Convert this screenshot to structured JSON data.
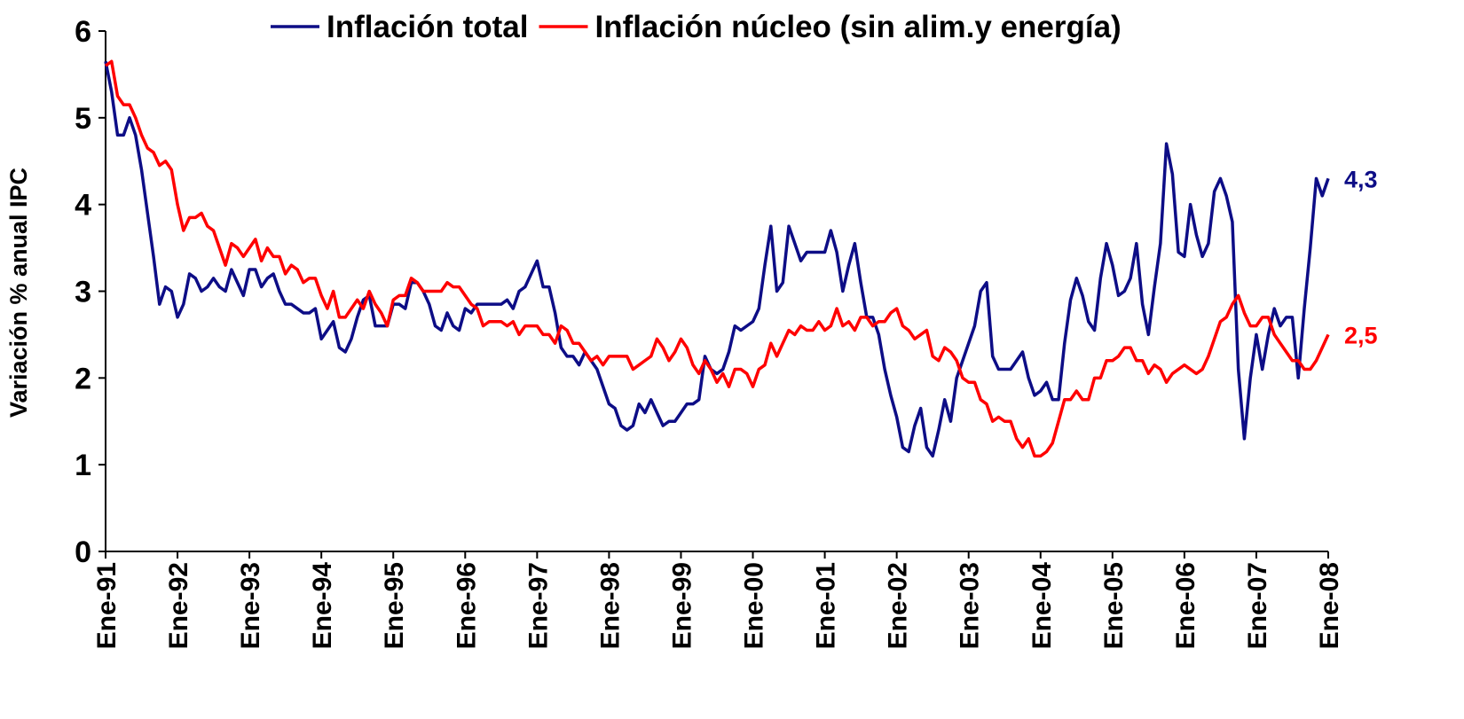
{
  "chart_data": {
    "type": "line",
    "y_label": "Variación % anual IPC",
    "categories": [
      "Ene-91",
      null,
      null,
      null,
      null,
      null,
      null,
      null,
      null,
      null,
      null,
      null,
      "Ene-92",
      null,
      null,
      null,
      null,
      null,
      null,
      null,
      null,
      null,
      null,
      null,
      "Ene-93",
      null,
      null,
      null,
      null,
      null,
      null,
      null,
      null,
      null,
      null,
      null,
      "Ene-94",
      null,
      null,
      null,
      null,
      null,
      null,
      null,
      null,
      null,
      null,
      null,
      "Ene-95",
      null,
      null,
      null,
      null,
      null,
      null,
      null,
      null,
      null,
      null,
      null,
      "Ene-96",
      null,
      null,
      null,
      null,
      null,
      null,
      null,
      null,
      null,
      null,
      null,
      "Ene-97",
      null,
      null,
      null,
      null,
      null,
      null,
      null,
      null,
      null,
      null,
      null,
      "Ene-98",
      null,
      null,
      null,
      null,
      null,
      null,
      null,
      null,
      null,
      null,
      null,
      "Ene-99",
      null,
      null,
      null,
      null,
      null,
      null,
      null,
      null,
      null,
      null,
      null,
      "Ene-00",
      null,
      null,
      null,
      null,
      null,
      null,
      null,
      null,
      null,
      null,
      null,
      "Ene-01",
      null,
      null,
      null,
      null,
      null,
      null,
      null,
      null,
      null,
      null,
      null,
      "Ene-02",
      null,
      null,
      null,
      null,
      null,
      null,
      null,
      null,
      null,
      null,
      null,
      "Ene-03",
      null,
      null,
      null,
      null,
      null,
      null,
      null,
      null,
      null,
      null,
      null,
      "Ene-04",
      null,
      null,
      null,
      null,
      null,
      null,
      null,
      null,
      null,
      null,
      null,
      "Ene-05",
      null,
      null,
      null,
      null,
      null,
      null,
      null,
      null,
      null,
      null,
      null,
      "Ene-06",
      null,
      null,
      null,
      null,
      null,
      null,
      null,
      null,
      null,
      null,
      null,
      "Ene-07",
      null,
      null,
      null,
      null,
      null,
      null,
      null,
      null,
      null,
      null,
      null,
      "Ene-08"
    ],
    "series": [
      {
        "name": "Inflación total",
        "color": "#0d0d86",
        "values": [
          5.65,
          5.3,
          4.8,
          4.8,
          5.0,
          4.8,
          4.4,
          3.9,
          3.4,
          2.85,
          3.05,
          3.0,
          2.7,
          2.85,
          3.2,
          3.15,
          3.0,
          3.05,
          3.15,
          3.05,
          3.0,
          3.25,
          3.1,
          2.95,
          3.25,
          3.25,
          3.05,
          3.15,
          3.2,
          3.0,
          2.85,
          2.85,
          2.8,
          2.75,
          2.75,
          2.8,
          2.45,
          2.55,
          2.65,
          2.35,
          2.3,
          2.45,
          2.7,
          2.9,
          2.95,
          2.6,
          2.6,
          2.6,
          2.85,
          2.85,
          2.8,
          3.1,
          3.1,
          3.0,
          2.85,
          2.6,
          2.55,
          2.75,
          2.6,
          2.55,
          2.8,
          2.75,
          2.85,
          2.85,
          2.85,
          2.85,
          2.85,
          2.9,
          2.8,
          3.0,
          3.05,
          3.2,
          3.35,
          3.05,
          3.05,
          2.75,
          2.35,
          2.25,
          2.25,
          2.15,
          2.3,
          2.2,
          2.1,
          1.9,
          1.7,
          1.65,
          1.45,
          1.4,
          1.45,
          1.7,
          1.6,
          1.75,
          1.6,
          1.45,
          1.5,
          1.5,
          1.6,
          1.7,
          1.7,
          1.75,
          2.25,
          2.1,
          2.05,
          2.1,
          2.3,
          2.6,
          2.55,
          2.6,
          2.65,
          2.8,
          3.3,
          3.75,
          3.0,
          3.1,
          3.75,
          3.55,
          3.35,
          3.45,
          3.45,
          3.45,
          3.45,
          3.7,
          3.45,
          3.0,
          3.3,
          3.55,
          3.1,
          2.7,
          2.7,
          2.5,
          2.1,
          1.8,
          1.55,
          1.2,
          1.15,
          1.45,
          1.65,
          1.2,
          1.1,
          1.4,
          1.75,
          1.5,
          2.0,
          2.2,
          2.4,
          2.6,
          3.0,
          3.1,
          2.25,
          2.1,
          2.1,
          2.1,
          2.2,
          2.3,
          2.0,
          1.8,
          1.85,
          1.95,
          1.75,
          1.75,
          2.4,
          2.9,
          3.15,
          2.95,
          2.65,
          2.55,
          3.15,
          3.55,
          3.3,
          2.95,
          3.0,
          3.15,
          3.55,
          2.85,
          2.5,
          3.05,
          3.55,
          4.7,
          4.35,
          3.45,
          3.4,
          4.0,
          3.65,
          3.4,
          3.55,
          4.15,
          4.3,
          4.1,
          3.8,
          2.1,
          1.3,
          2.0,
          2.5,
          2.1,
          2.5,
          2.8,
          2.6,
          2.7,
          2.7,
          2.0,
          2.8,
          3.5,
          4.3,
          4.1,
          4.3
        ]
      },
      {
        "name": "Inflación núcleo (sin alim.y energía)",
        "color": "#ff0000",
        "values": [
          5.6,
          5.65,
          5.25,
          5.15,
          5.15,
          5.0,
          4.8,
          4.65,
          4.6,
          4.45,
          4.5,
          4.4,
          4.0,
          3.7,
          3.85,
          3.85,
          3.9,
          3.75,
          3.7,
          3.5,
          3.3,
          3.55,
          3.5,
          3.4,
          3.5,
          3.6,
          3.35,
          3.5,
          3.4,
          3.4,
          3.2,
          3.3,
          3.25,
          3.1,
          3.15,
          3.15,
          2.95,
          2.8,
          3.0,
          2.7,
          2.7,
          2.8,
          2.9,
          2.8,
          3.0,
          2.85,
          2.75,
          2.6,
          2.9,
          2.95,
          2.95,
          3.15,
          3.1,
          3.0,
          3.0,
          3.0,
          3.0,
          3.1,
          3.05,
          3.05,
          2.95,
          2.85,
          2.8,
          2.6,
          2.65,
          2.65,
          2.65,
          2.6,
          2.65,
          2.5,
          2.6,
          2.6,
          2.6,
          2.5,
          2.5,
          2.4,
          2.6,
          2.55,
          2.4,
          2.4,
          2.3,
          2.2,
          2.25,
          2.15,
          2.25,
          2.25,
          2.25,
          2.25,
          2.1,
          2.15,
          2.2,
          2.25,
          2.45,
          2.35,
          2.2,
          2.3,
          2.45,
          2.35,
          2.15,
          2.05,
          2.2,
          2.1,
          1.95,
          2.05,
          1.9,
          2.1,
          2.1,
          2.05,
          1.9,
          2.1,
          2.15,
          2.4,
          2.25,
          2.4,
          2.55,
          2.5,
          2.6,
          2.55,
          2.55,
          2.65,
          2.55,
          2.6,
          2.8,
          2.6,
          2.65,
          2.55,
          2.7,
          2.7,
          2.6,
          2.65,
          2.65,
          2.75,
          2.8,
          2.6,
          2.55,
          2.45,
          2.5,
          2.55,
          2.25,
          2.2,
          2.35,
          2.3,
          2.2,
          2.0,
          1.95,
          1.95,
          1.75,
          1.7,
          1.5,
          1.55,
          1.5,
          1.5,
          1.3,
          1.2,
          1.3,
          1.1,
          1.1,
          1.15,
          1.25,
          1.5,
          1.75,
          1.75,
          1.85,
          1.75,
          1.75,
          2.0,
          2.0,
          2.2,
          2.2,
          2.25,
          2.35,
          2.35,
          2.2,
          2.2,
          2.05,
          2.15,
          2.1,
          1.95,
          2.05,
          2.1,
          2.15,
          2.1,
          2.05,
          2.1,
          2.25,
          2.45,
          2.65,
          2.7,
          2.85,
          2.95,
          2.75,
          2.6,
          2.6,
          2.7,
          2.7,
          2.5,
          2.4,
          2.3,
          2.2,
          2.2,
          2.1,
          2.1,
          2.2,
          2.35,
          2.5
        ]
      }
    ],
    "annotations": [
      "4,3",
      "2,5"
    ],
    "ylim": [
      0,
      6
    ],
    "yticks": [
      0,
      1,
      2,
      3,
      4,
      5,
      6
    ],
    "grid": false,
    "legend": "top"
  }
}
